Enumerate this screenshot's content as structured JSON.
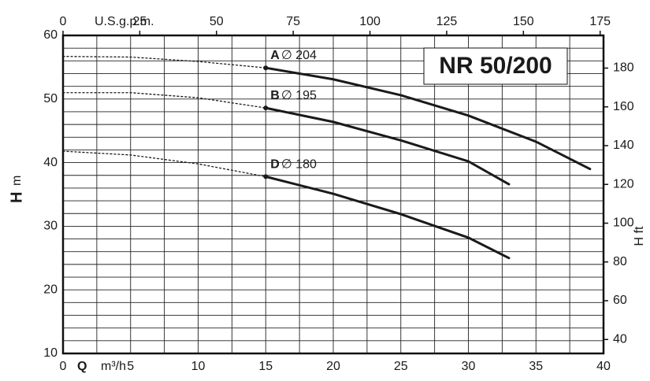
{
  "chart_data": {
    "type": "line",
    "title": "NR 50/200",
    "xlabel": {
      "symbol": "Q",
      "unit": "m³/h"
    },
    "x2label": "U.S.g.p.m.",
    "ylabel": {
      "symbol": "H",
      "unit": "m"
    },
    "y2label": "H ft",
    "xlim": [
      0,
      40
    ],
    "xticks": [
      0,
      5,
      10,
      15,
      20,
      25,
      30,
      35,
      40
    ],
    "x2lim": [
      0,
      176.1
    ],
    "x2ticks": [
      0,
      25,
      50,
      75,
      100,
      125,
      150,
      175
    ],
    "ylim": [
      10,
      60
    ],
    "yticks": [
      10,
      20,
      30,
      40,
      50,
      60
    ],
    "y2lim": [
      32.8,
      196.85
    ],
    "y2ticks": [
      40,
      60,
      80,
      100,
      120,
      140,
      160,
      180
    ],
    "xgrid": [
      0,
      2.5,
      5,
      7.5,
      10,
      12.5,
      15,
      17.5,
      20,
      22.5,
      25,
      27.5,
      30,
      32.5,
      35,
      37.5,
      40
    ],
    "ygrid": [
      10,
      12,
      14,
      16,
      18,
      20,
      22,
      24,
      26,
      28,
      30,
      32,
      34,
      36,
      38,
      40,
      42,
      44,
      46,
      48,
      50,
      52,
      54,
      56,
      58,
      60
    ],
    "color": "#1a1a1a",
    "series": [
      {
        "name": "A",
        "label": "∅ 204",
        "dotted": {
          "x": [
            0,
            5,
            10,
            15
          ],
          "values": [
            56.7,
            56.6,
            55.9,
            54.9
          ]
        },
        "solid": {
          "x": [
            15,
            20,
            25,
            30,
            35,
            39
          ],
          "values": [
            54.9,
            53.1,
            50.6,
            47.4,
            43.3,
            39.0
          ]
        }
      },
      {
        "name": "B",
        "label": "∅ 195",
        "dotted": {
          "x": [
            0,
            5,
            10,
            15
          ],
          "values": [
            51.0,
            51.0,
            50.2,
            48.6
          ]
        },
        "solid": {
          "x": [
            15,
            20,
            25,
            30,
            33
          ],
          "values": [
            48.6,
            46.4,
            43.5,
            40.2,
            36.6
          ]
        }
      },
      {
        "name": "D",
        "label": "∅ 180",
        "dotted": {
          "x": [
            0,
            5,
            10,
            15
          ],
          "values": [
            41.8,
            41.2,
            39.8,
            37.8
          ]
        },
        "solid": {
          "x": [
            15,
            20,
            25,
            30,
            33
          ],
          "values": [
            37.8,
            35.1,
            31.9,
            28.2,
            25.0
          ]
        }
      }
    ]
  }
}
